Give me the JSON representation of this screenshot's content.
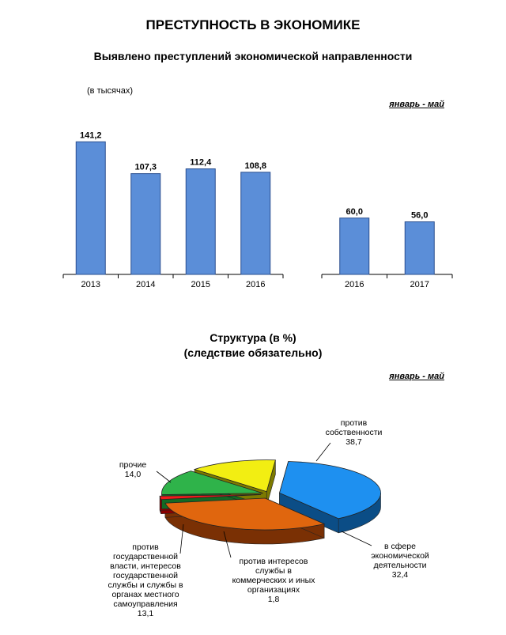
{
  "page": {
    "title": "ПРЕСТУПНОСТЬ В ЭКОНОМИКЕ",
    "subtitle": "Выявлено преступлений экономической направленности",
    "units": "(в тысячах)",
    "period_1": "январь - май",
    "pie_title_1": "Структура (в %)",
    "pie_title_2": "(следствие обязательно)",
    "period_2": "январь - май"
  },
  "colors": {
    "bar": "#5b8ed8",
    "bar_edge": "#2a4f8f"
  },
  "chart_data": [
    {
      "type": "bar",
      "title": "Выявлено преступлений экономической направленности",
      "ylabel": "(в тысячах)",
      "categories": [
        "2013",
        "2014",
        "2015",
        "2016"
      ],
      "values": [
        141.2,
        107.3,
        112.4,
        108.8
      ],
      "value_labels": [
        "141,2",
        "107,3",
        "112,4",
        "108,8"
      ],
      "ylim": [
        0,
        160
      ]
    },
    {
      "type": "bar",
      "title": "январь - май",
      "categories": [
        "2016",
        "2017"
      ],
      "values": [
        60.0,
        56.0
      ],
      "value_labels": [
        "60,0",
        "56,0"
      ],
      "ylim": [
        0,
        160
      ]
    },
    {
      "type": "pie",
      "title": "Структура (в %)",
      "subtitle": "(следствие обязательно)",
      "slices": [
        {
          "label": "против собственности",
          "value": 38.7,
          "value_label": "38,7",
          "color": "#1e90f0",
          "side": "#0b4d86"
        },
        {
          "label": "в сфере экономической деятельности",
          "value": 32.4,
          "value_label": "32,4",
          "color": "#e0660e",
          "side": "#7a3004"
        },
        {
          "label": "против интересов службы в коммерческих и иных организациях",
          "value": 1.8,
          "value_label": "1,8",
          "color": "#ee1c1c",
          "side": "#8a0000"
        },
        {
          "label": "против государственной власти, интересов государственной службы и службы в органах местного самоуправления",
          "value": 13.1,
          "value_label": "13,1",
          "color": "#2fb34a",
          "side": "#136a24"
        },
        {
          "label": "прочие",
          "value": 14.0,
          "value_label": "14,0",
          "color": "#f2ee12",
          "side": "#7d7a00"
        }
      ]
    }
  ]
}
